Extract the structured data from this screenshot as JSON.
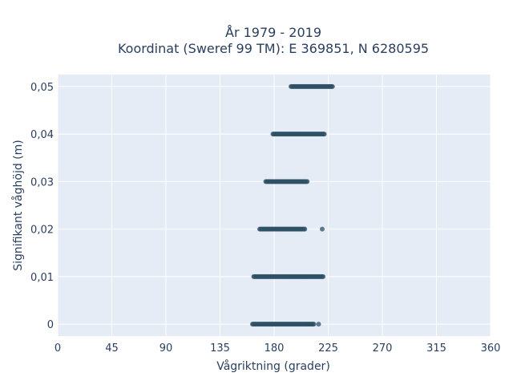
{
  "chart_data": {
    "type": "scatter",
    "title": "År 1979 - 2019",
    "subtitle": "Koordinat (Sweref 99 TM): E 369851, N 6280595",
    "xlabel": "Vågriktning (grader)",
    "ylabel": "Signifikant våghöjd (m)",
    "xlim": [
      0,
      360
    ],
    "ylim": [
      -0.0025,
      0.0525
    ],
    "x_ticks": [
      0,
      45,
      90,
      135,
      180,
      225,
      270,
      315,
      360
    ],
    "y_ticks": [
      0,
      0.01,
      0.02,
      0.03,
      0.04,
      0.05
    ],
    "y_tick_labels": [
      "0",
      "0,01",
      "0,02",
      "0,03",
      "0,04",
      "0,05"
    ],
    "grid": true,
    "marker_color": "#2f5166",
    "plot_background": "#e5ecf6",
    "series": [
      {
        "bands": [
          {
            "y": 0.0,
            "x_start": 162,
            "x_end": 213
          },
          {
            "y": 0.01,
            "x_start": 163,
            "x_end": 221
          },
          {
            "y": 0.02,
            "x_start": 168,
            "x_end": 206
          },
          {
            "y": 0.03,
            "x_start": 173,
            "x_end": 208
          },
          {
            "y": 0.04,
            "x_start": 179,
            "x_end": 222
          },
          {
            "y": 0.05,
            "x_start": 194,
            "x_end": 229
          }
        ],
        "isolated_points": [
          {
            "x": 217,
            "y": 0.0
          },
          {
            "x": 220,
            "y": 0.02
          }
        ]
      }
    ]
  }
}
